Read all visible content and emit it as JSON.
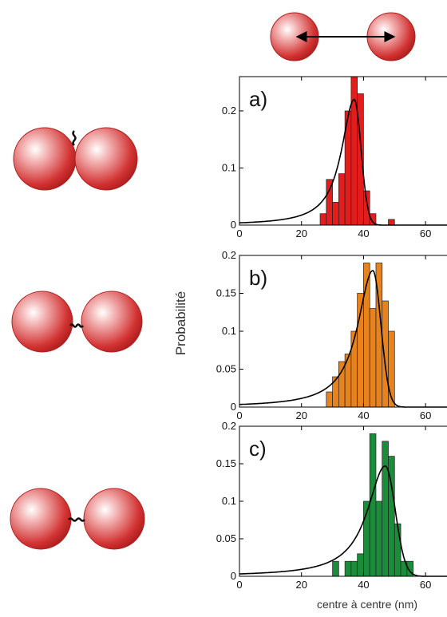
{
  "figure": {
    "ylabel": "Probabilité",
    "xlabel": "centre à centre (nm)"
  },
  "chart_data": [
    {
      "type": "bar",
      "label": "a)",
      "color": "#e31c1c",
      "bin_width": 2,
      "xlim": [
        0,
        70
      ],
      "ylim": [
        0,
        0.26
      ],
      "xticks": [
        0,
        20,
        40,
        60
      ],
      "yticks": [
        0,
        0.1,
        0.2
      ],
      "bins": [
        {
          "x": 27,
          "y": 0.02
        },
        {
          "x": 29,
          "y": 0.08
        },
        {
          "x": 31,
          "y": 0.04
        },
        {
          "x": 33,
          "y": 0.09
        },
        {
          "x": 35,
          "y": 0.2
        },
        {
          "x": 37,
          "y": 0.26
        },
        {
          "x": 39,
          "y": 0.23
        },
        {
          "x": 41,
          "y": 0.06
        },
        {
          "x": 43,
          "y": 0.02
        },
        {
          "x": 49,
          "y": 0.01
        }
      ],
      "fit": {
        "peak_x": 37,
        "peak_y": 0.22,
        "left_width": 5,
        "right_width": 2.2
      }
    },
    {
      "type": "bar",
      "label": "b)",
      "color": "#e8821c",
      "bin_width": 2,
      "xlim": [
        0,
        70
      ],
      "ylim": [
        0,
        0.2
      ],
      "xticks": [
        0,
        20,
        40,
        60
      ],
      "yticks": [
        0,
        0.05,
        0.1,
        0.15,
        0.2
      ],
      "bins": [
        {
          "x": 29,
          "y": 0.02
        },
        {
          "x": 31,
          "y": 0.04
        },
        {
          "x": 33,
          "y": 0.06
        },
        {
          "x": 35,
          "y": 0.07
        },
        {
          "x": 37,
          "y": 0.1
        },
        {
          "x": 39,
          "y": 0.15
        },
        {
          "x": 41,
          "y": 0.19
        },
        {
          "x": 43,
          "y": 0.13
        },
        {
          "x": 45,
          "y": 0.19
        },
        {
          "x": 47,
          "y": 0.14
        },
        {
          "x": 49,
          "y": 0.1
        }
      ],
      "fit": {
        "peak_x": 43,
        "peak_y": 0.18,
        "left_width": 6,
        "right_width": 2.6
      }
    },
    {
      "type": "bar",
      "label": "c)",
      "color": "#1a8c3a",
      "bin_width": 2,
      "xlim": [
        0,
        70
      ],
      "ylim": [
        0,
        0.2
      ],
      "xticks": [
        0,
        20,
        40,
        60
      ],
      "yticks": [
        0,
        0.05,
        0.1,
        0.15,
        0.2
      ],
      "bins": [
        {
          "x": 31,
          "y": 0.02
        },
        {
          "x": 35,
          "y": 0.02
        },
        {
          "x": 37,
          "y": 0.02
        },
        {
          "x": 39,
          "y": 0.03
        },
        {
          "x": 41,
          "y": 0.1
        },
        {
          "x": 43,
          "y": 0.19
        },
        {
          "x": 45,
          "y": 0.1
        },
        {
          "x": 47,
          "y": 0.18
        },
        {
          "x": 49,
          "y": 0.16
        },
        {
          "x": 51,
          "y": 0.07
        },
        {
          "x": 53,
          "y": 0.02
        },
        {
          "x": 55,
          "y": 0.02
        }
      ],
      "fit": {
        "peak_x": 47,
        "peak_y": 0.147,
        "left_width": 7,
        "right_width": 3.2
      }
    }
  ]
}
